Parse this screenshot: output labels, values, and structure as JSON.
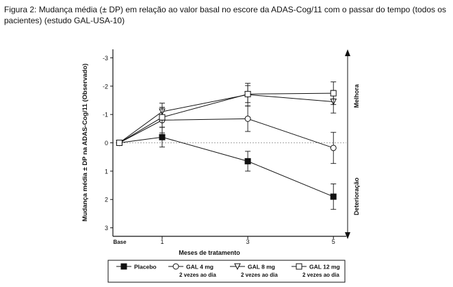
{
  "caption": "Figura 2: Mudança média (± DP) em relação ao valor basal no escore da ADAS-Cog/11 com o passar do tempo (todos os pacientes) (estudo GAL-USA-10)",
  "chart_data": {
    "type": "line",
    "xlabel": "Meses de tratamento",
    "ylabel": "Mudança média ± DP na ADAS-Cog/11 (Observado)",
    "x_ticks": [
      "Base",
      "1",
      "3",
      "5"
    ],
    "x": [
      0,
      1,
      3,
      5
    ],
    "y_ticks": [
      "-3",
      "-2",
      "-1",
      "0",
      "1",
      "2",
      "3"
    ],
    "y_tick_values": [
      -3,
      -2,
      -1,
      0,
      1,
      2,
      3
    ],
    "ylim": [
      3.3,
      -3.3
    ],
    "xlim": [
      -0.15,
      5.3
    ],
    "right_labels": {
      "top": "Melhora",
      "bottom": "Deterioração"
    },
    "grid": false,
    "legend_position": "bottom",
    "series": [
      {
        "name": "Placebo",
        "sub": "",
        "marker": "square-filled",
        "y": [
          0,
          -0.2,
          0.65,
          1.9
        ],
        "err": [
          0,
          0.35,
          0.35,
          0.45
        ]
      },
      {
        "name": "GAL 4 mg",
        "sub": "2 vezes ao dia",
        "marker": "circle",
        "y": [
          0,
          -0.8,
          -0.85,
          0.18
        ],
        "err": [
          0,
          0.45,
          0.45,
          0.55
        ]
      },
      {
        "name": "GAL 8 mg",
        "sub": "2 vezes ao dia",
        "marker": "triangle-down",
        "y": [
          0,
          -1.1,
          -1.7,
          -1.45
        ],
        "err": [
          0,
          0.3,
          0.4,
          0.4
        ]
      },
      {
        "name": "GAL 12 mg",
        "sub": "2 vezes ao dia",
        "marker": "square",
        "y": [
          0,
          -0.9,
          -1.72,
          -1.75
        ],
        "err": [
          0,
          0.35,
          0.3,
          0.4
        ]
      }
    ]
  }
}
